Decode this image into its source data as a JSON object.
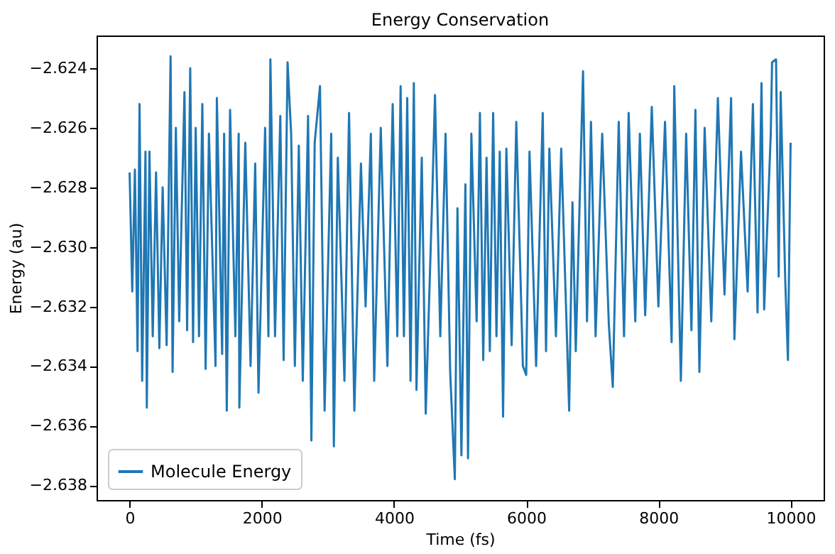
{
  "chart_data": {
    "type": "line",
    "title": "Energy Conservation",
    "xlabel": "Time (fs)",
    "ylabel": "Energy (au)",
    "xlim": [
      -500,
      10500
    ],
    "ylim": [
      -2.6385,
      -2.6229
    ],
    "xticks": [
      0,
      2000,
      4000,
      6000,
      8000,
      10000
    ],
    "yticks": [
      -2.638,
      -2.636,
      -2.634,
      -2.632,
      {
        "value": -2.63,
        "label": "−2.630"
      },
      -2.628,
      -2.626,
      -2.624
    ],
    "grid": false,
    "legend": "bottom left",
    "marker": "none",
    "line_style": "solid",
    "x": [
      0,
      40,
      80,
      120,
      150,
      190,
      240,
      260,
      300,
      350,
      400,
      450,
      500,
      560,
      620,
      650,
      700,
      750,
      830,
      870,
      917,
      960,
      1000,
      1050,
      1100,
      1150,
      1200,
      1300,
      1320,
      1400,
      1430,
      1470,
      1520,
      1600,
      1650,
      1660,
      1750,
      1830,
      1900,
      1950,
      2050,
      2100,
      2130,
      2200,
      2280,
      2330,
      2390,
      2444,
      2500,
      2560,
      2620,
      2700,
      2750,
      2800,
      2880,
      2950,
      3050,
      3090,
      3150,
      3250,
      3320,
      3400,
      3500,
      3570,
      3650,
      3700,
      3800,
      3900,
      3980,
      4050,
      4100,
      4150,
      4200,
      4250,
      4300,
      4340,
      4420,
      4480,
      4580,
      4620,
      4700,
      4780,
      4850,
      4920,
      4960,
      5020,
      5080,
      5120,
      5170,
      5250,
      5300,
      5350,
      5400,
      5450,
      5500,
      5550,
      5600,
      5650,
      5700,
      5780,
      5850,
      5950,
      6000,
      6050,
      6150,
      6250,
      6300,
      6350,
      6450,
      6530,
      6650,
      6700,
      6750,
      6860,
      6920,
      6980,
      7050,
      7150,
      7250,
      7310,
      7400,
      7480,
      7550,
      7650,
      7720,
      7800,
      7900,
      8000,
      8100,
      8200,
      8240,
      8340,
      8420,
      8500,
      8560,
      8620,
      8700,
      8800,
      8900,
      9000,
      9100,
      9150,
      9250,
      9350,
      9430,
      9500,
      9560,
      9600,
      9700,
      9720,
      9780,
      9820,
      9850,
      9920,
      9960,
      10000
    ],
    "series": [
      {
        "name": "Molecule Energy",
        "color": "#1f77b4",
        "values": [
          -2.6275,
          -2.6315,
          -2.6274,
          -2.6335,
          -2.6252,
          -2.6345,
          -2.6268,
          -2.6354,
          -2.6268,
          -2.633,
          -2.6275,
          -2.6334,
          -2.628,
          -2.6333,
          -2.6236,
          -2.6342,
          -2.626,
          -2.6325,
          -2.6248,
          -2.6328,
          -2.624,
          -2.6332,
          -2.626,
          -2.633,
          -2.6252,
          -2.6341,
          -2.6262,
          -2.634,
          -2.625,
          -2.6336,
          -2.6262,
          -2.6355,
          -2.6254,
          -2.633,
          -2.6262,
          -2.6354,
          -2.6265,
          -2.634,
          -2.6272,
          -2.6349,
          -2.626,
          -2.633,
          -2.6237,
          -2.633,
          -2.6256,
          -2.6338,
          -2.6238,
          -2.6262,
          -2.634,
          -2.6266,
          -2.6345,
          -2.6256,
          -2.6365,
          -2.6265,
          -2.6246,
          -2.6355,
          -2.6262,
          -2.6367,
          -2.627,
          -2.6345,
          -2.6255,
          -2.6355,
          -2.6272,
          -2.632,
          -2.6262,
          -2.6345,
          -2.626,
          -2.634,
          -2.6252,
          -2.633,
          -2.6246,
          -2.633,
          -2.625,
          -2.6345,
          -2.6245,
          -2.6348,
          -2.627,
          -2.6356,
          -2.6282,
          -2.6249,
          -2.633,
          -2.6262,
          -2.6342,
          -2.6378,
          -2.6287,
          -2.637,
          -2.6279,
          -2.6371,
          -2.6262,
          -2.6325,
          -2.6255,
          -2.6338,
          -2.627,
          -2.6335,
          -2.6255,
          -2.633,
          -2.6268,
          -2.6357,
          -2.6267,
          -2.6333,
          -2.6258,
          -2.634,
          -2.6343,
          -2.6268,
          -2.634,
          -2.6255,
          -2.6335,
          -2.6267,
          -2.633,
          -2.6267,
          -2.6355,
          -2.6285,
          -2.6335,
          -2.6241,
          -2.6325,
          -2.6258,
          -2.633,
          -2.6262,
          -2.6326,
          -2.6347,
          -2.6258,
          -2.633,
          -2.6255,
          -2.6325,
          -2.6262,
          -2.6323,
          -2.6253,
          -2.632,
          -2.6258,
          -2.6332,
          -2.6246,
          -2.6345,
          -2.6262,
          -2.6328,
          -2.6254,
          -2.6342,
          -2.626,
          -2.6325,
          -2.625,
          -2.6316,
          -2.625,
          -2.6331,
          -2.6268,
          -2.6315,
          -2.6252,
          -2.6322,
          -2.6245,
          -2.6321,
          -2.6262,
          -2.6238,
          -2.6237,
          -2.631,
          -2.6248,
          -2.6312,
          -2.6338,
          -2.6265
        ]
      }
    ]
  }
}
